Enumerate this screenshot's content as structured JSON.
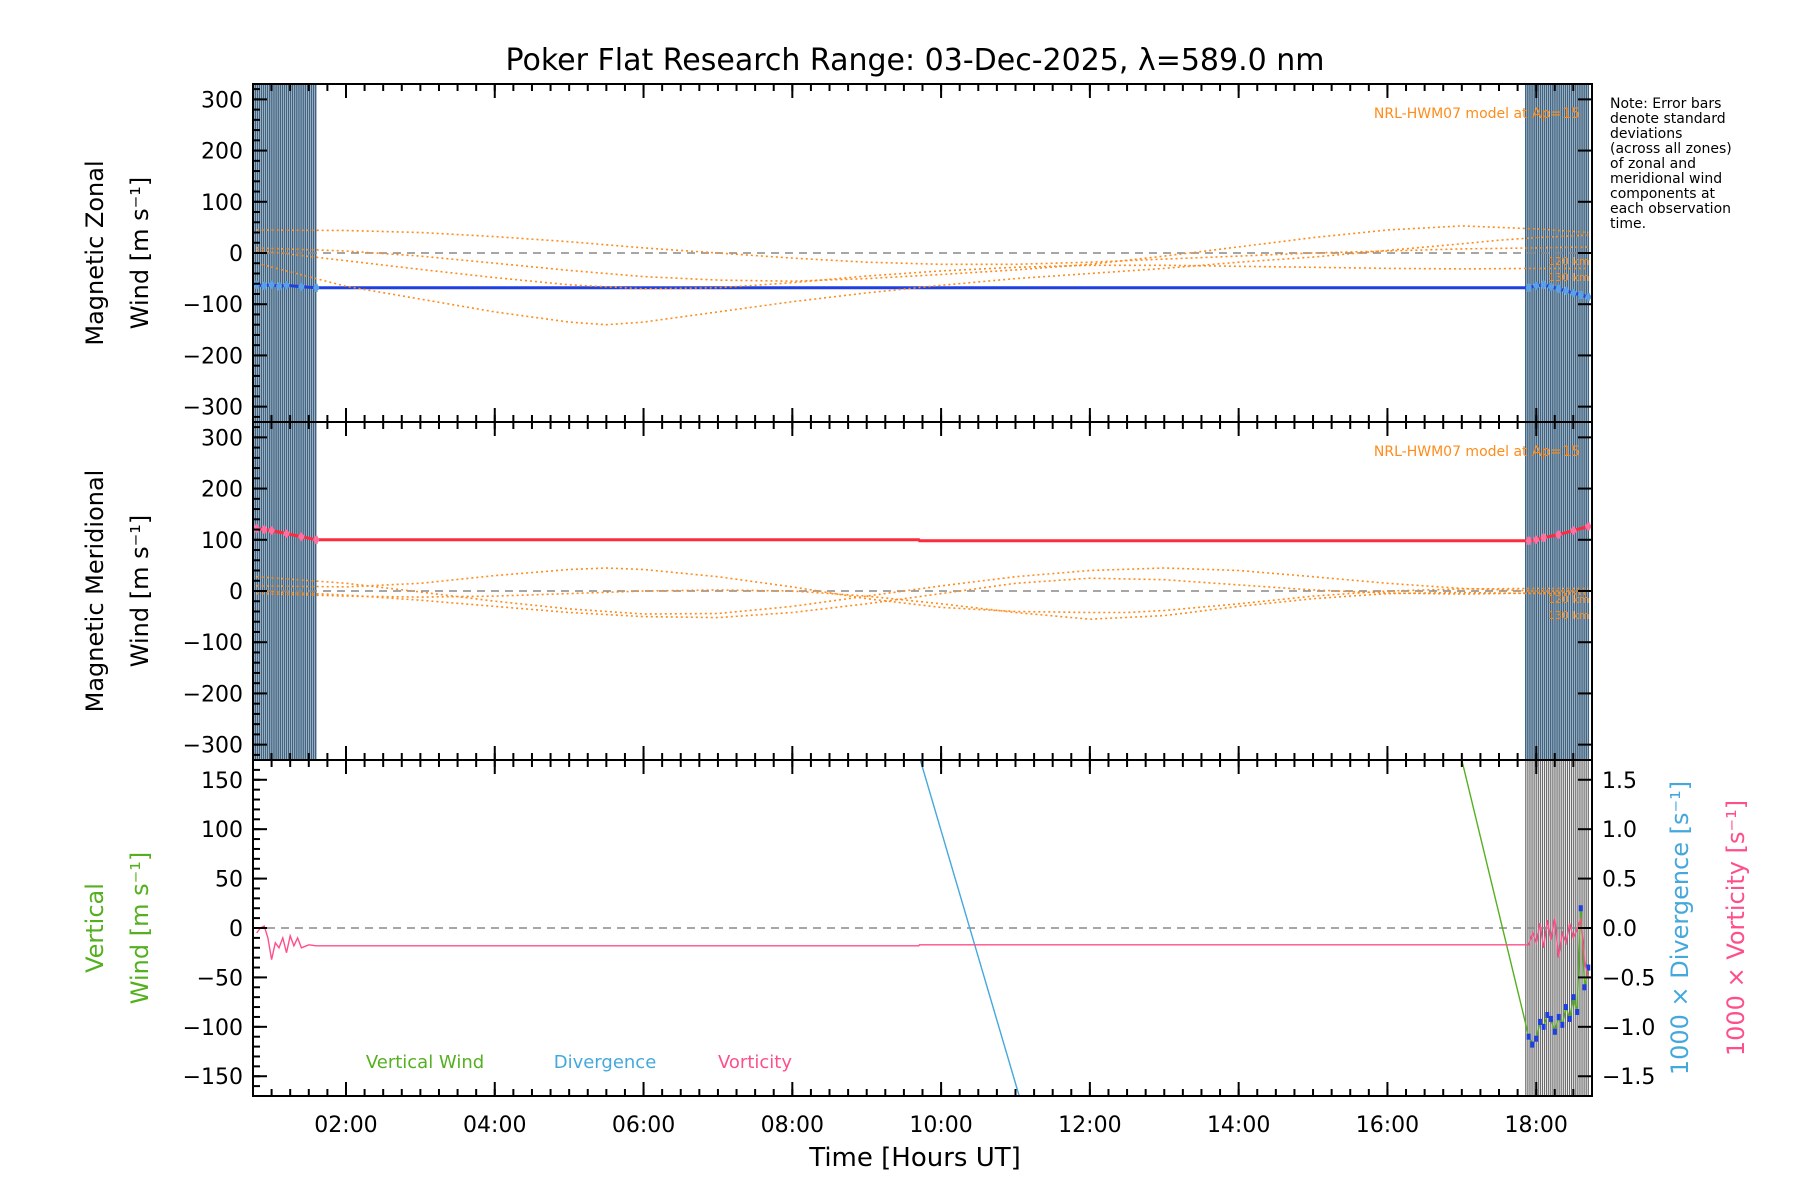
{
  "title": "Poker Flat Research Range: 03-Dec-2025, λ=589.0 nm",
  "note": [
    "Note: Error bars",
    "denote standard",
    "deviations",
    "(across all zones)",
    "of zonal and",
    "meridional wind",
    "components at",
    "each observation",
    "time."
  ],
  "colors": {
    "zonal": "#1f3fe0",
    "zonal_err": "#5aa0e6",
    "meridional": "#ff2a3c",
    "meridional_err": "#ff6fa0",
    "model": "#ff8c1a",
    "vertical": "#55b020",
    "divergence": "#45a8dd",
    "vorticity": "#ff4f8b",
    "obs_lines": "#1e4a6e",
    "zero_line": "#888888"
  },
  "chart_data": [
    {
      "type": "line",
      "panel": "zonal",
      "ylabel": "Magnetic Zonal Wind [m s-1]",
      "ylabel_lines": [
        "Magnetic Zonal",
        "Wind [m s⁻¹]"
      ],
      "ylim": [
        -330,
        330
      ],
      "yticks": [
        300,
        200,
        100,
        0,
        -100,
        -200,
        -300
      ],
      "ytick_labels": [
        "300",
        "200",
        "100",
        "0",
        "−100",
        "−200",
        "−300"
      ],
      "model_label": "NRL-HWM07 model at Ap=15",
      "model_alt_labels": [
        "120 km",
        "130 km"
      ],
      "series": [
        {
          "role": "measured",
          "x": [
            0.8,
            0.9,
            1.0,
            1.1,
            1.2,
            1.4,
            1.6,
            9.7,
            17.9,
            18.0,
            18.1,
            18.2,
            18.3,
            18.4,
            18.5,
            18.6,
            18.7
          ],
          "y": [
            -62,
            -64,
            -62,
            -65,
            -63,
            -66,
            -68,
            -68,
            -68,
            -64,
            -62,
            -66,
            -70,
            -74,
            -78,
            -82,
            -86
          ]
        },
        {
          "role": "model",
          "x": [
            0.8,
            2,
            3,
            4,
            5,
            5.5,
            6,
            7,
            8,
            9,
            10,
            11,
            12,
            13,
            14,
            15,
            16,
            17,
            17.5,
            18,
            18.7
          ],
          "y": [
            -20,
            -65,
            -90,
            -115,
            -135,
            -140,
            -135,
            -115,
            -95,
            -78,
            -63,
            -50,
            -40,
            -30,
            -18,
            -8,
            5,
            18,
            25,
            30,
            35
          ]
        },
        {
          "role": "model",
          "x": [
            0.8,
            2,
            3,
            4,
            5,
            6,
            7,
            8,
            9,
            10,
            11,
            12,
            13,
            14,
            15,
            16,
            17,
            18,
            18.7
          ],
          "y": [
            5,
            -15,
            -32,
            -48,
            -62,
            -70,
            -68,
            -58,
            -45,
            -35,
            -28,
            -24,
            -24,
            -26,
            -28,
            -30,
            -31,
            -30,
            -30
          ]
        },
        {
          "role": "model",
          "x": [
            0.8,
            2,
            3,
            4,
            5,
            6,
            7,
            8,
            9,
            10,
            11,
            12,
            13,
            14,
            15,
            16,
            17,
            18,
            18.7
          ],
          "y": [
            10,
            4,
            -6,
            -20,
            -34,
            -46,
            -53,
            -55,
            -50,
            -42,
            -33,
            -22,
            -6,
            12,
            30,
            45,
            53,
            47,
            40
          ]
        },
        {
          "role": "model",
          "x": [
            0.8,
            2,
            3,
            4,
            5,
            6,
            7,
            8,
            9,
            10,
            11,
            12,
            13,
            14,
            15,
            16,
            17,
            18,
            18.7
          ],
          "y": [
            45,
            44,
            40,
            32,
            22,
            10,
            0,
            -10,
            -18,
            -22,
            -22,
            -18,
            -12,
            -6,
            0,
            4,
            8,
            10,
            12
          ]
        }
      ]
    },
    {
      "type": "line",
      "panel": "meridional",
      "ylabel": "Magnetic Meridional Wind [m s-1]",
      "ylabel_lines": [
        "Magnetic Meridional",
        "Wind [m s⁻¹]"
      ],
      "ylim": [
        -330,
        330
      ],
      "yticks": [
        300,
        200,
        100,
        0,
        -100,
        -200,
        -300
      ],
      "ytick_labels": [
        "300",
        "200",
        "100",
        "0",
        "−100",
        "−200",
        "−300"
      ],
      "model_label": "NRL-HWM07 model at Ap=15",
      "model_alt_labels": [
        "120 km",
        "130 km"
      ],
      "series": [
        {
          "role": "measured",
          "x": [
            0.8,
            0.9,
            1.0,
            1.2,
            1.4,
            1.6,
            9.7,
            9.71,
            17.9,
            18.0,
            18.1,
            18.3,
            18.5,
            18.7
          ],
          "y": [
            122,
            120,
            118,
            112,
            106,
            100,
            100,
            98,
            98,
            100,
            104,
            110,
            118,
            126
          ]
        },
        {
          "role": "model",
          "x": [
            0.8,
            2,
            3,
            4,
            5,
            5.5,
            6,
            7,
            8,
            9,
            10,
            11,
            12,
            12.5,
            13,
            14,
            15,
            16,
            17,
            18,
            18.7
          ],
          "y": [
            10,
            8,
            15,
            30,
            42,
            45,
            42,
            28,
            8,
            -15,
            -32,
            -40,
            -42,
            -42,
            -38,
            -25,
            -10,
            0,
            4,
            5,
            5
          ]
        },
        {
          "role": "model",
          "x": [
            0.8,
            2,
            3,
            4,
            5,
            6,
            7,
            8,
            9,
            10,
            11,
            12,
            13,
            14,
            15,
            16,
            17,
            18,
            18.7
          ],
          "y": [
            28,
            15,
            -2,
            -20,
            -35,
            -45,
            -44,
            -30,
            -10,
            10,
            28,
            40,
            45,
            40,
            28,
            15,
            5,
            0,
            0
          ]
        },
        {
          "role": "model",
          "x": [
            0.8,
            2,
            3,
            4,
            5,
            6,
            7,
            8,
            9,
            10,
            11,
            12,
            13,
            14,
            15,
            16,
            17,
            18,
            18.7
          ],
          "y": [
            0,
            -8,
            -18,
            -30,
            -42,
            -50,
            -52,
            -42,
            -25,
            -5,
            15,
            25,
            22,
            12,
            2,
            -4,
            -6,
            -4,
            -2
          ]
        },
        {
          "role": "model",
          "x": [
            0.8,
            2,
            3,
            4,
            5,
            6,
            7,
            8,
            9,
            10,
            11,
            12,
            13,
            14,
            15,
            16,
            17,
            18,
            18.7
          ],
          "y": [
            -5,
            -10,
            -12,
            -10,
            -5,
            0,
            2,
            0,
            -10,
            -25,
            -42,
            -55,
            -48,
            -30,
            -15,
            -5,
            -3,
            -5,
            -6
          ]
        }
      ]
    },
    {
      "type": "line",
      "panel": "vertical",
      "ylabel": "Vertical Wind [m s-1]",
      "ylabel_lines": [
        "Vertical",
        "Wind [m s⁻¹]"
      ],
      "ylabel_right": [
        "1000 × Divergence [s⁻¹]",
        "1000 × Vorticity [s⁻¹]"
      ],
      "ylim": [
        -170,
        170
      ],
      "yticks": [
        150,
        100,
        50,
        0,
        -50,
        -100,
        -150
      ],
      "ytick_labels": [
        "150",
        "100",
        "50",
        "0",
        "−50",
        "−100",
        "−150"
      ],
      "y2lim": [
        -1.7,
        1.7
      ],
      "y2ticks": [
        1.5,
        1.0,
        0.5,
        0.0,
        -0.5,
        -1.0,
        -1.5
      ],
      "y2tick_labels": [
        "1.5",
        "1.0",
        "0.5",
        "0.0",
        "−0.5",
        "−1.0",
        "−1.5"
      ],
      "legend": [
        "Vertical Wind",
        "Divergence",
        "Vorticity"
      ],
      "series": [
        {
          "role": "vertical",
          "x": [
            17.0,
            17.9,
            17.95,
            18.0,
            18.05,
            18.1,
            18.15,
            18.2,
            18.25,
            18.3,
            18.35,
            18.4,
            18.45,
            18.5,
            18.55,
            18.6,
            18.65,
            18.7
          ],
          "y": [
            170,
            -110,
            -118,
            -112,
            -95,
            -100,
            -88,
            -92,
            -105,
            -90,
            -98,
            -80,
            -92,
            -70,
            -85,
            20,
            -60,
            -40
          ]
        },
        {
          "role": "divergence",
          "x": [
            9.72,
            11.05
          ],
          "y": [
            1.7,
            -1.7
          ]
        },
        {
          "role": "vorticity",
          "x": [
            0.8,
            0.85,
            0.9,
            0.95,
            1.0,
            1.05,
            1.1,
            1.15,
            1.2,
            1.25,
            1.3,
            1.35,
            1.4,
            1.5,
            1.6,
            9.7,
            9.71,
            17.9,
            17.95,
            18.0,
            18.05,
            18.1,
            18.15,
            18.2,
            18.25,
            18.3,
            18.35,
            18.4,
            18.45,
            18.5,
            18.55,
            18.6,
            18.65,
            18.7
          ],
          "y": [
            -0.05,
            0.0,
            0.02,
            -0.1,
            -0.32,
            -0.15,
            -0.2,
            -0.1,
            -0.25,
            -0.08,
            -0.18,
            -0.1,
            -0.2,
            -0.17,
            -0.18,
            -0.18,
            -0.17,
            -0.17,
            -0.05,
            -0.15,
            0.05,
            -0.2,
            0.08,
            -0.12,
            0.1,
            -0.3,
            -0.05,
            -0.15,
            0.05,
            -0.1,
            -0.02,
            0.1,
            -0.35,
            -0.5
          ]
        }
      ]
    }
  ],
  "x_axis": {
    "label": "Time [Hours UT]",
    "range": [
      0.75,
      18.75
    ],
    "ticks": [
      2,
      4,
      6,
      8,
      10,
      12,
      14,
      16,
      18
    ],
    "tick_labels": [
      "02:00",
      "04:00",
      "06:00",
      "08:00",
      "10:00",
      "12:00",
      "14:00",
      "16:00",
      "18:00"
    ]
  }
}
